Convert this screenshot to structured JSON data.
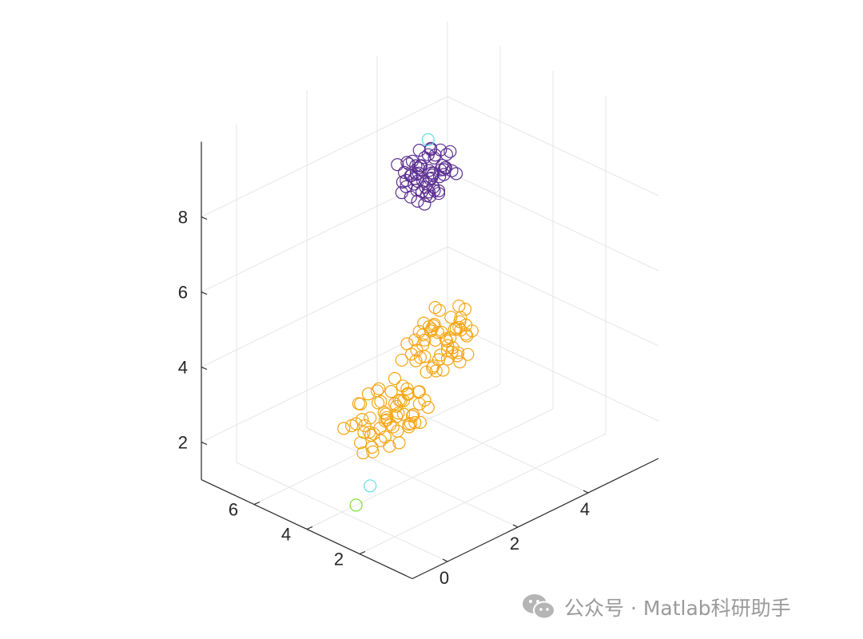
{
  "chart_data": {
    "type": "scatter",
    "title": "",
    "xlabel": "",
    "ylabel": "",
    "zlabel": "",
    "xlim": [
      -1,
      6
    ],
    "ylim": [
      0,
      8
    ],
    "zlim": [
      1,
      10
    ],
    "x_ticks": [
      0,
      2,
      4
    ],
    "y_ticks": [
      2,
      4,
      6
    ],
    "z_ticks": [
      2,
      4,
      6,
      8
    ],
    "grid": true,
    "marker": "open-circle",
    "series": [
      {
        "color": "#5b2f91",
        "points": [
          [
            1.6,
            3.4,
            9.2
          ],
          [
            1.9,
            3.1,
            9.4
          ],
          [
            2.2,
            3.6,
            9.0
          ],
          [
            1.7,
            3.8,
            9.6
          ],
          [
            2.4,
            3.3,
            9.3
          ],
          [
            2.0,
            3.0,
            8.9
          ],
          [
            1.5,
            3.2,
            9.8
          ],
          [
            2.1,
            3.9,
            9.1
          ],
          [
            1.8,
            3.5,
            9.5
          ],
          [
            2.3,
            3.7,
            9.7
          ],
          [
            1.4,
            3.6,
            9.0
          ],
          [
            2.5,
            3.0,
            9.2
          ],
          [
            1.9,
            4.0,
            9.4
          ],
          [
            2.0,
            2.8,
            9.6
          ],
          [
            1.6,
            3.0,
            8.8
          ],
          [
            2.2,
            3.2,
            9.9
          ],
          [
            1.7,
            3.4,
            8.7
          ],
          [
            2.6,
            3.5,
            9.5
          ],
          [
            1.3,
            3.3,
            9.3
          ],
          [
            2.1,
            3.6,
            8.6
          ],
          [
            1.8,
            2.9,
            9.1
          ],
          [
            2.4,
            3.8,
            9.0
          ],
          [
            1.5,
            3.9,
            9.6
          ],
          [
            2.0,
            3.3,
            10.0
          ],
          [
            1.9,
            3.7,
            8.8
          ],
          [
            2.3,
            2.9,
            9.4
          ],
          [
            1.6,
            3.7,
            9.2
          ],
          [
            2.2,
            3.4,
            9.7
          ],
          [
            1.8,
            3.1,
            9.0
          ],
          [
            2.5,
            3.6,
            9.1
          ],
          [
            1.4,
            3.0,
            9.5
          ],
          [
            2.0,
            3.5,
            8.9
          ],
          [
            1.7,
            3.2,
            9.3
          ],
          [
            2.1,
            3.0,
            9.6
          ],
          [
            2.3,
            3.4,
            8.7
          ],
          [
            1.9,
            3.6,
            9.9
          ],
          [
            1.6,
            3.5,
            9.4
          ],
          [
            2.4,
            3.1,
            9.8
          ],
          [
            1.8,
            3.8,
            9.2
          ],
          [
            2.0,
            3.2,
            9.0
          ],
          [
            1.5,
            3.4,
            8.9
          ],
          [
            2.2,
            3.8,
            9.5
          ],
          [
            1.9,
            3.3,
            9.1
          ],
          [
            2.1,
            3.5,
            9.3
          ],
          [
            1.7,
            3.6,
            9.7
          ],
          [
            2.3,
            3.2,
            9.2
          ],
          [
            1.8,
            3.4,
            9.6
          ],
          [
            2.0,
            3.7,
            9.4
          ],
          [
            1.6,
            3.1,
            9.1
          ],
          [
            2.2,
            3.0,
            9.5
          ],
          [
            1.9,
            3.2,
            8.8
          ],
          [
            2.4,
            3.5,
            9.0
          ],
          [
            1.7,
            3.9,
            9.3
          ],
          [
            2.0,
            3.4,
            9.8
          ],
          [
            1.5,
            3.7,
            9.2
          ],
          [
            2.1,
            3.3,
            9.7
          ],
          [
            1.8,
            3.0,
            9.4
          ],
          [
            2.3,
            3.6,
            9.1
          ],
          [
            1.6,
            3.3,
            9.5
          ],
          [
            2.0,
            3.9,
            9.0
          ]
        ]
      },
      {
        "color": "#f5a511",
        "points": [
          [
            2.2,
            3.8,
            4.2
          ],
          [
            2.6,
            4.1,
            4.6
          ],
          [
            3.0,
            3.6,
            4.0
          ],
          [
            2.4,
            4.4,
            3.8
          ],
          [
            3.2,
            4.0,
            4.4
          ],
          [
            2.8,
            3.4,
            4.8
          ],
          [
            2.0,
            4.2,
            4.5
          ],
          [
            3.4,
            3.8,
            4.2
          ],
          [
            2.6,
            3.9,
            3.6
          ],
          [
            3.0,
            4.3,
            4.9
          ],
          [
            2.2,
            3.5,
            4.0
          ],
          [
            3.6,
            4.1,
            4.3
          ],
          [
            2.8,
            4.6,
            4.1
          ],
          [
            2.4,
            3.7,
            5.0
          ],
          [
            3.2,
            3.5,
            3.9
          ],
          [
            2.0,
            3.9,
            4.7
          ],
          [
            3.4,
            4.4,
            4.5
          ],
          [
            2.6,
            3.3,
            4.3
          ],
          [
            3.0,
            4.0,
            3.7
          ],
          [
            2.8,
            4.2,
            5.1
          ],
          [
            2.3,
            4.0,
            4.4
          ],
          [
            3.1,
            3.7,
            4.6
          ],
          [
            2.5,
            4.5,
            4.0
          ],
          [
            3.3,
            4.2,
            3.8
          ],
          [
            2.7,
            3.6,
            4.2
          ],
          [
            2.1,
            3.6,
            3.9
          ],
          [
            3.5,
            4.0,
            4.8
          ],
          [
            2.9,
            4.4,
            4.5
          ],
          [
            2.4,
            4.1,
            4.9
          ],
          [
            3.0,
            3.9,
            4.3
          ],
          [
            2.2,
            4.3,
            4.1
          ],
          [
            3.2,
            4.3,
            4.0
          ],
          [
            2.6,
            3.7,
            4.7
          ],
          [
            3.4,
            3.6,
            4.4
          ],
          [
            2.8,
            4.0,
            3.9
          ],
          [
            2.0,
            3.7,
            4.3
          ],
          [
            3.6,
            4.3,
            4.1
          ],
          [
            2.5,
            3.8,
            4.5
          ],
          [
            3.1,
            4.5,
            4.2
          ],
          [
            2.7,
            4.3,
            4.6
          ],
          [
            3.3,
            3.9,
            4.7
          ],
          [
            2.3,
            3.4,
            4.2
          ],
          [
            2.9,
            3.5,
            4.0
          ],
          [
            3.5,
            4.2,
            4.4
          ],
          [
            2.6,
            4.0,
            3.7
          ],
          [
            2.4,
            3.2,
            4.6
          ],
          [
            3.0,
            4.6,
            4.3
          ],
          [
            2.2,
            4.0,
            4.8
          ],
          [
            3.2,
            3.8,
            3.6
          ],
          [
            2.8,
            3.8,
            4.4
          ],
          [
            2.0,
            4.4,
            4.0
          ],
          [
            3.4,
            4.1,
            4.9
          ],
          [
            2.6,
            4.4,
            4.4
          ],
          [
            3.0,
            3.3,
            4.6
          ],
          [
            2.5,
            3.5,
            3.8
          ],
          [
            1.0,
            4.5,
            2.5
          ],
          [
            1.4,
            4.2,
            2.9
          ],
          [
            1.8,
            4.7,
            2.4
          ],
          [
            1.2,
            4.0,
            3.1
          ],
          [
            2.0,
            4.6,
            2.7
          ],
          [
            1.6,
            3.8,
            3.3
          ],
          [
            0.8,
            4.3,
            3.0
          ],
          [
            2.2,
            4.4,
            2.2
          ],
          [
            1.4,
            4.8,
            2.6
          ],
          [
            1.8,
            4.1,
            3.5
          ],
          [
            1.0,
            3.9,
            2.8
          ],
          [
            2.4,
            4.3,
            3.0
          ],
          [
            1.6,
            4.5,
            2.1
          ],
          [
            1.2,
            4.6,
            3.4
          ],
          [
            2.0,
            3.9,
            2.5
          ],
          [
            0.8,
            4.7,
            2.7
          ],
          [
            2.2,
            4.0,
            3.2
          ],
          [
            1.4,
            3.7,
            2.3
          ],
          [
            1.8,
            4.4,
            3.6
          ],
          [
            1.0,
            4.2,
            2.2
          ],
          [
            2.4,
            4.7,
            2.8
          ],
          [
            1.6,
            4.0,
            2.9
          ],
          [
            1.2,
            4.4,
            2.4
          ],
          [
            2.0,
            4.2,
            3.3
          ],
          [
            1.4,
            4.5,
            3.1
          ],
          [
            1.8,
            3.8,
            2.6
          ],
          [
            1.0,
            4.7,
            3.2
          ],
          [
            2.2,
            4.6,
            2.4
          ],
          [
            1.6,
            4.3,
            2.5
          ],
          [
            1.2,
            3.9,
            3.0
          ],
          [
            2.0,
            4.5,
            2.9
          ],
          [
            0.9,
            4.1,
            2.6
          ],
          [
            2.3,
            4.1,
            2.3
          ],
          [
            1.5,
            4.6,
            3.4
          ],
          [
            1.7,
            4.2,
            2.7
          ],
          [
            1.1,
            4.3,
            2.0
          ],
          [
            2.1,
            4.3,
            3.1
          ],
          [
            1.3,
            4.1,
            2.8
          ],
          [
            1.9,
            4.6,
            2.2
          ],
          [
            1.5,
            4.0,
            3.2
          ],
          [
            0.7,
            4.4,
            2.9
          ],
          [
            2.5,
            4.4,
            2.6
          ],
          [
            1.7,
            4.8,
            2.9
          ],
          [
            1.3,
            4.4,
            3.5
          ],
          [
            1.9,
            4.0,
            2.4
          ],
          [
            1.1,
            4.6,
            2.6
          ],
          [
            2.3,
            3.8,
            2.8
          ],
          [
            1.5,
            4.2,
            2.0
          ],
          [
            1.7,
            4.4,
            3.3
          ],
          [
            1.3,
            4.7,
            2.3
          ],
          [
            2.1,
            4.1,
            2.6
          ],
          [
            0.9,
            4.5,
            3.3
          ],
          [
            1.9,
            4.3,
            3.0
          ],
          [
            1.5,
            3.9,
            2.5
          ],
          [
            1.1,
            4.0,
            2.4
          ],
          [
            2.6,
            4.8,
            2.1
          ],
          [
            0.6,
            4.0,
            2.3
          ],
          [
            1.2,
            4.9,
            2.0
          ],
          [
            2.8,
            4.6,
            2.5
          ],
          [
            0.5,
            4.6,
            2.8
          ]
        ]
      },
      {
        "color": "#5ee0e0",
        "points": [
          [
            2.0,
            3.4,
            10.2
          ],
          [
            0.5,
            3.6,
            1.6
          ]
        ]
      },
      {
        "color": "#7fe032",
        "points": [
          [
            0.4,
            4.0,
            1.0
          ]
        ]
      }
    ]
  },
  "watermark": {
    "icon": "wechat-icon",
    "text": "公众号 · Matlab科研助手"
  }
}
